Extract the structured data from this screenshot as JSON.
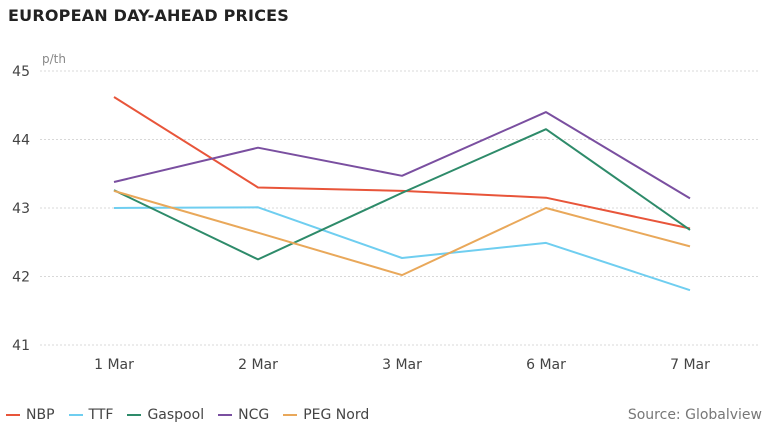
{
  "title": "EUROPEAN DAY-AHEAD PRICES",
  "source": "Source: Globalview",
  "chart_data": {
    "type": "line",
    "title": "EUROPEAN DAY-AHEAD PRICES",
    "unit_label": "p/th",
    "xlabel": "",
    "ylabel": "",
    "ylim": [
      41,
      45
    ],
    "yticks": [
      "41",
      "42",
      "43",
      "44",
      "45"
    ],
    "categories": [
      "1 Mar",
      "2 Mar",
      "3 Mar",
      "6 Mar",
      "7 Mar"
    ],
    "grid": true,
    "legend_position": "bottom-left",
    "series": [
      {
        "name": "NBP",
        "color": "#e8553a",
        "values": [
          44.62,
          43.3,
          43.25,
          43.15,
          42.7
        ]
      },
      {
        "name": "TTF",
        "color": "#6fcef0",
        "values": [
          43.0,
          43.01,
          42.27,
          42.49,
          41.8
        ]
      },
      {
        "name": "Gaspool",
        "color": "#2e8b6a",
        "values": [
          43.26,
          42.25,
          43.22,
          44.15,
          42.68
        ]
      },
      {
        "name": "NCG",
        "color": "#7a4fa0",
        "values": [
          43.38,
          43.88,
          43.47,
          44.4,
          43.14
        ]
      },
      {
        "name": "PEG Nord",
        "color": "#e9a85a",
        "values": [
          43.25,
          42.64,
          42.02,
          43.0,
          42.44
        ]
      }
    ]
  }
}
